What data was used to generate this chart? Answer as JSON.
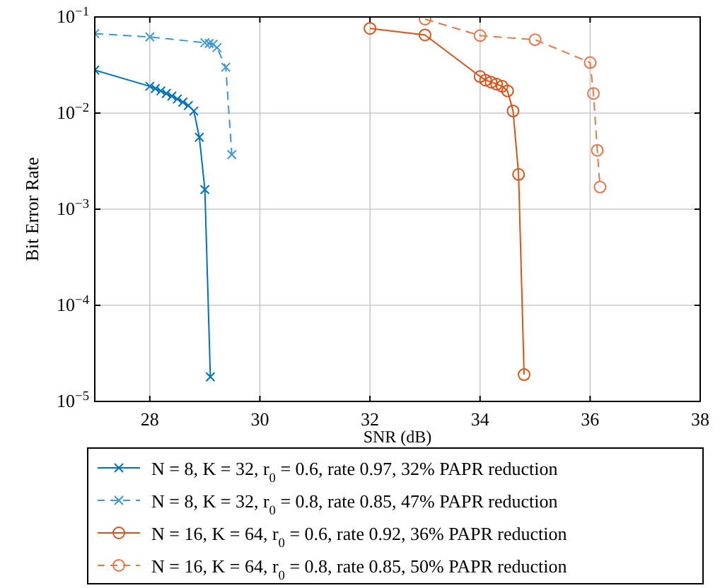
{
  "chart_data": {
    "type": "line",
    "xlabel": "SNR (dB)",
    "ylabel": "Bit Error Rate",
    "log": "y",
    "grid": true,
    "legend": "bottom",
    "xlim": [
      27,
      38
    ],
    "xticks": [
      28,
      30,
      32,
      34,
      36,
      38
    ],
    "ylim": [
      1e-05,
      0.1
    ],
    "yticks": [
      {
        "value": 1e-05,
        "label": "10$^{−5}$"
      },
      {
        "value": 0.0001,
        "label": "10$^{−4}$"
      },
      {
        "value": 0.001,
        "label": "10$^{−3}$"
      },
      {
        "value": 0.01,
        "label": "10$^{−2}$"
      },
      {
        "value": 0.1,
        "label": "10$^{−1}$"
      }
    ],
    "series": [
      {
        "name": "N = 8, K = 32, r$_{0}$ = 0.6, rate 0.97, 32% PAPR reduction",
        "color": "#0072bd",
        "marker": "cross",
        "line_style": "solid",
        "x": [
          27,
          28,
          28.1,
          28.2,
          28.3,
          28.4,
          28.5,
          28.6,
          28.7,
          28.8,
          28.9,
          29,
          29.1
        ],
        "values": [
          0.028,
          0.019,
          0.018,
          0.017,
          0.016,
          0.015,
          0.014,
          0.013,
          0.012,
          0.0105,
          0.0056,
          0.0016,
          1.8e-05
        ]
      },
      {
        "name": "N = 8, K = 32, r$_{0}$ = 0.8, rate 0.85, 47% PAPR reduction",
        "color": "#3d95d6",
        "marker": "cross",
        "line_style": "dashed",
        "x": [
          27,
          28,
          29,
          29.08,
          29.15,
          29.22,
          29.38,
          29.49
        ],
        "values": [
          0.067,
          0.062,
          0.054,
          0.053,
          0.052,
          0.048,
          0.03,
          0.0037
        ]
      },
      {
        "name": "N = 16, K = 64, r$_{0}$ = 0.6, rate 0.92, 36% PAPR reduction",
        "color": "#d95319",
        "marker": "circle",
        "line_style": "solid",
        "x": [
          32,
          33,
          34,
          34.1,
          34.2,
          34.3,
          34.4,
          34.5,
          34.6,
          34.7,
          34.8
        ],
        "values": [
          0.076,
          0.065,
          0.024,
          0.022,
          0.021,
          0.02,
          0.019,
          0.017,
          0.0105,
          0.0023,
          1.9e-05
        ]
      },
      {
        "name": "N = 16, K = 64, r$_{0}$ = 0.8, rate 0.85, 50% PAPR reduction",
        "color": "#e8774a",
        "marker": "circle",
        "line_style": "dashed",
        "x": [
          33,
          34,
          35,
          36,
          36.06,
          36.13,
          36.18
        ],
        "values": [
          0.095,
          0.064,
          0.058,
          0.0335,
          0.016,
          0.0041,
          0.0017
        ]
      }
    ]
  }
}
